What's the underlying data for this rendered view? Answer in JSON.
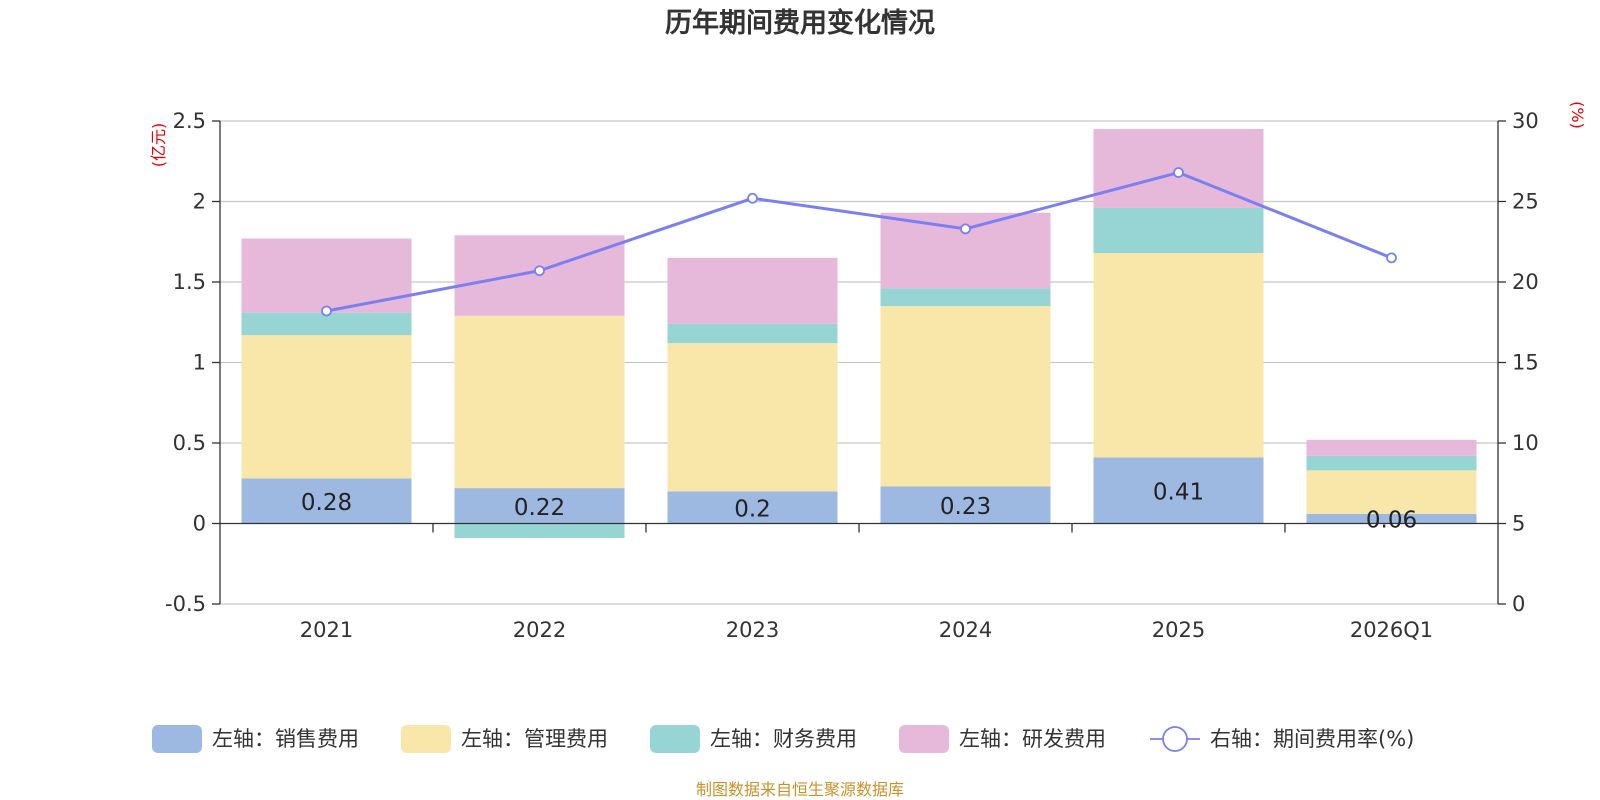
{
  "chart_data": {
    "type": "bar",
    "stacked": true,
    "title": "历年期间费用变化情况",
    "categories": [
      "2021",
      "2022",
      "2023",
      "2024",
      "2025",
      "2026Q1"
    ],
    "left_axis": {
      "unit": "(亿元)",
      "ylim": [
        -0.5,
        2.5
      ],
      "ticks": [
        "-0.5",
        "0",
        "0.5",
        "1",
        "1.5",
        "2",
        "2.5"
      ]
    },
    "right_axis": {
      "unit": "(%)",
      "ylim": [
        0,
        30
      ],
      "ticks": [
        "0",
        "5",
        "10",
        "15",
        "20",
        "25",
        "30"
      ]
    },
    "series": [
      {
        "name": "左轴：销售费用",
        "axis": "left",
        "color": "#9db8e1",
        "values": [
          0.28,
          0.22,
          0.2,
          0.23,
          0.41,
          0.06
        ],
        "labels": [
          "0.28",
          "0.22",
          "0.2",
          "0.23",
          "0.41",
          "0.06"
        ]
      },
      {
        "name": "左轴：管理费用",
        "axis": "left",
        "color": "#f8e7a8",
        "values": [
          0.89,
          1.07,
          0.92,
          1.12,
          1.27,
          0.27
        ]
      },
      {
        "name": "左轴：财务费用",
        "axis": "left",
        "color": "#96d5d4",
        "values": [
          0.14,
          -0.09,
          0.12,
          0.11,
          0.28,
          0.09
        ]
      },
      {
        "name": "左轴：研发费用",
        "axis": "left",
        "color": "#e6b9da",
        "values": [
          0.46,
          0.5,
          0.41,
          0.47,
          0.49,
          0.1
        ]
      }
    ],
    "line_series": {
      "name": "右轴：期间费用率(%)",
      "axis": "right",
      "color": "#7b7ff0",
      "values": [
        18.2,
        20.7,
        25.2,
        23.3,
        26.8,
        21.5
      ]
    },
    "source": "制图数据来自恒生聚源数据库"
  }
}
